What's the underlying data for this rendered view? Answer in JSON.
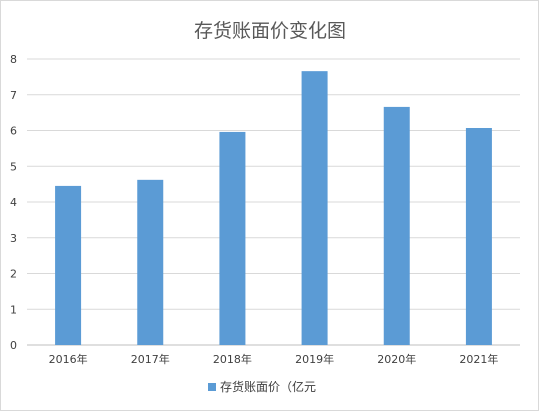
{
  "chart_data": {
    "type": "bar",
    "title": "存货账面价变化图",
    "categories": [
      "2016年",
      "2017年",
      "2018年",
      "2019年",
      "2020年",
      "2021年"
    ],
    "series": [
      {
        "name": "存货账面价（亿元",
        "values": [
          4.45,
          4.62,
          5.96,
          7.66,
          6.66,
          6.07
        ]
      }
    ],
    "ylim": [
      0,
      8
    ],
    "yticks": [
      0,
      1,
      2,
      3,
      4,
      5,
      6,
      7,
      8
    ],
    "grid": true,
    "legend_position": "bottom",
    "colors": {
      "bar": "#5b9bd5",
      "grid": "#d9d9d9",
      "axis": "#bfbfbf"
    }
  }
}
